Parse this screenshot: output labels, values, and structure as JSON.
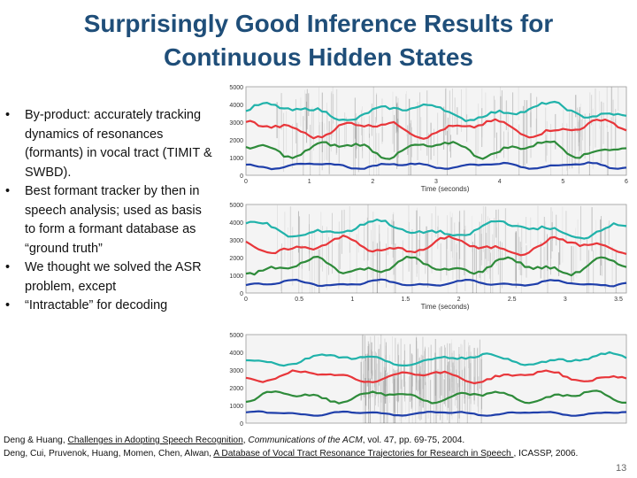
{
  "slide": {
    "title_line1": "Surprisingly Good Inference Results for",
    "title_line2": "Continuous Hidden States",
    "bullet_marker": "•",
    "bullets": [
      "By-product: accurately tracking dynamics of resonances (formants) in vocal tract (TIMIT & SWBD).",
      "Best formant tracker by then in speech analysis; used as basis to form a formant database as “ground truth”",
      "We thought we solved the ASR problem, except",
      "“Intractable” for decoding"
    ],
    "page_number": "13"
  },
  "figure": {
    "panels": [
      {
        "xlabel": "Time (seconds)",
        "yticks": [
          "5000",
          "4000",
          "3000",
          "2000",
          "1000",
          "0"
        ],
        "xticks": [
          "0",
          "1",
          "2",
          "3",
          "4",
          "5",
          "6"
        ]
      },
      {
        "xlabel": "Time (seconds)",
        "yticks": [
          "5000",
          "4000",
          "3000",
          "2000",
          "1000",
          "0"
        ],
        "xticks": [
          "0",
          "0.5",
          "1",
          "1.5",
          "2",
          "2.5",
          "3",
          "3.5"
        ]
      },
      {
        "xlabel": "",
        "yticks": [
          "5000",
          "4000",
          "3000",
          "2000",
          "1000",
          "0"
        ],
        "xticks": []
      }
    ],
    "track_colors": [
      "#20b2aa",
      "#e8363a",
      "#2e8b3a",
      "#1f3faa"
    ]
  },
  "references": {
    "ref1": {
      "authors": "Deng & Huang, ",
      "link": "Challenges in Adopting Speech Recognition",
      "sep": ", ",
      "journal": "Communications of the ACM",
      "rest": ", vol. 47, pp. 69-75, 2004."
    },
    "ref2": {
      "authors": "Deng, Cui, Pruvenok, Huang, Momen, Chen, Alwan, ",
      "link": "A Database of Vocal Tract Resonance Trajectories for Research in Speech ",
      "rest": ", ICASSP, 2006."
    }
  }
}
